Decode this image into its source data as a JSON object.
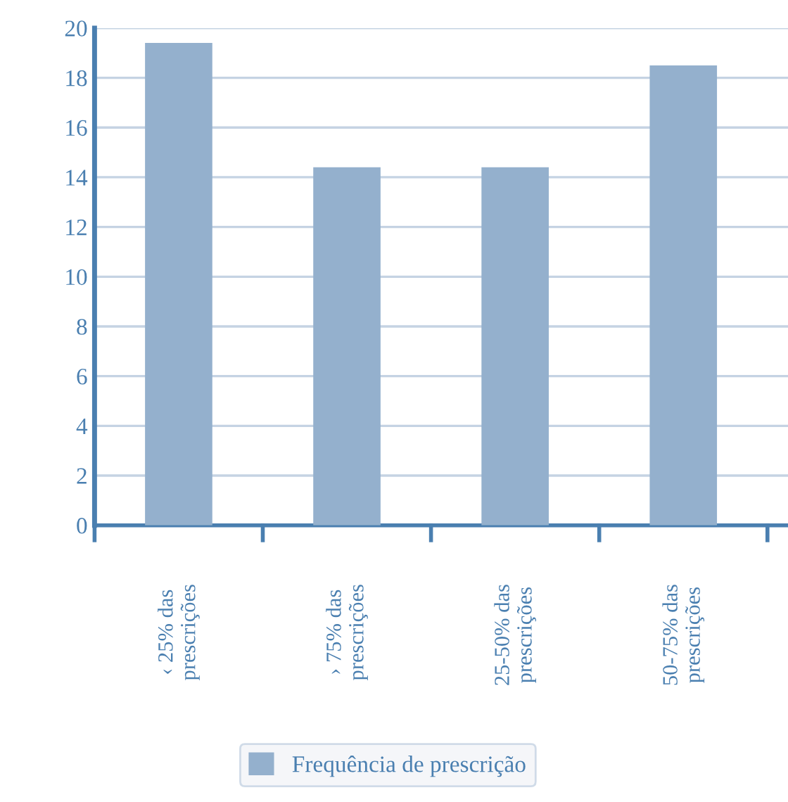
{
  "chart_data": {
    "type": "bar",
    "categories": [
      "‹ 25% das\nprescrições",
      "› 75% das\nprescrições",
      "25-50% das\nprescrições",
      "50-75% das\nprescrições"
    ],
    "series": [
      {
        "name": "Frequência de prescrição",
        "color": "#94b0cd",
        "values": [
          19.4,
          14.4,
          14.4,
          18.5
        ]
      }
    ],
    "ylim": [
      0,
      20
    ],
    "yticks": [
      0,
      2,
      4,
      6,
      8,
      10,
      12,
      14,
      16,
      18,
      20
    ],
    "grid": "y",
    "legend": "bottom"
  }
}
